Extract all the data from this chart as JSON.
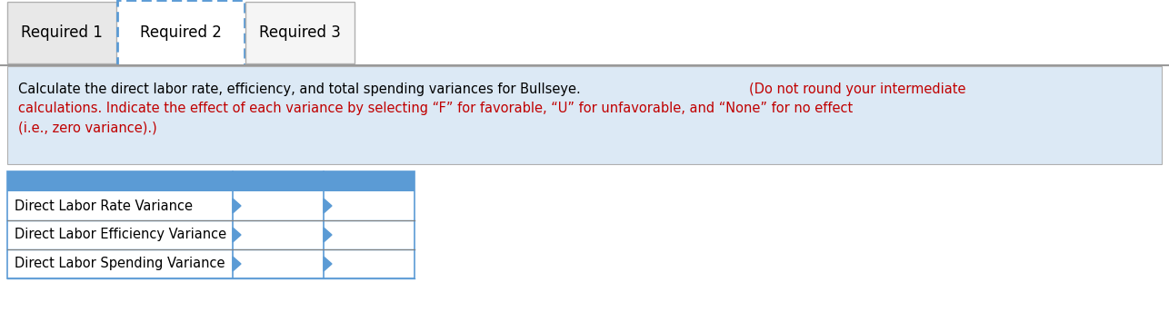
{
  "tab1_label": "Required 1",
  "tab2_label": "Required 2",
  "tab3_label": "Required 3",
  "instruction_black": "Calculate the direct labor rate, efficiency, and total spending variances for Bullseye. ",
  "instruction_red_line1": "(Do not round your intermediate",
  "instruction_red_line2": "calculations. Indicate the effect of each variance by selecting “F” for favorable, “U” for unfavorable, and “None” for no effect",
  "instruction_red_line3": "(i.e., zero variance).)",
  "row_labels": [
    "Direct Labor Rate Variance",
    "Direct Labor Efficiency Variance",
    "Direct Labor Spending Variance"
  ],
  "tab_bg": "#e8e8e8",
  "tab2_border_color": "#5b9bd5",
  "tab3_bg": "#f5f5f5",
  "instruction_bg": "#dce9f5",
  "table_header_bg": "#5b9bd5",
  "table_border_color": "#5b9bd5",
  "table_row_divider_color": "#808080",
  "bg_color": "#ffffff",
  "black_text": "#000000",
  "red_text": "#c00000",
  "gray_border": "#b0b0b0",
  "bottom_border": "#999999"
}
